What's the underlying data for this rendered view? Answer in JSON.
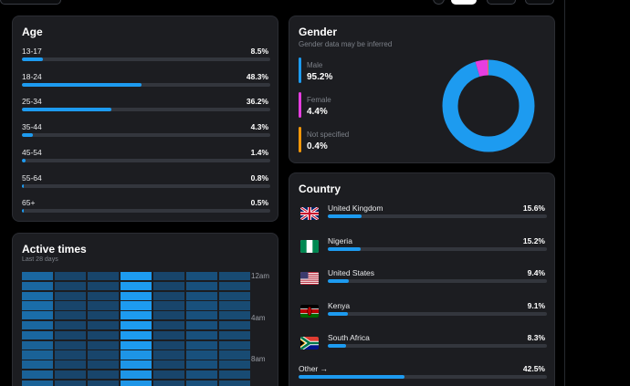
{
  "colors": {
    "accent": "#1d9bf0",
    "male": "#1d9bf0",
    "female": "#e63ee0",
    "not_specified": "#f5970a"
  },
  "age": {
    "title": "Age",
    "rows": [
      {
        "label": "13-17",
        "value": "8.5%",
        "pct": 8.5
      },
      {
        "label": "18-24",
        "value": "48.3%",
        "pct": 48.3
      },
      {
        "label": "25-34",
        "value": "36.2%",
        "pct": 36.2
      },
      {
        "label": "35-44",
        "value": "4.3%",
        "pct": 4.3
      },
      {
        "label": "45-54",
        "value": "1.4%",
        "pct": 1.4
      },
      {
        "label": "55-64",
        "value": "0.8%",
        "pct": 0.8
      },
      {
        "label": "65+",
        "value": "0.5%",
        "pct": 0.5
      }
    ]
  },
  "gender": {
    "title": "Gender",
    "subtitle": "Gender data may be inferred",
    "items": [
      {
        "label": "Male",
        "value": "95.2%",
        "pct": 95.2,
        "color": "#1d9bf0"
      },
      {
        "label": "Female",
        "value": "4.4%",
        "pct": 4.4,
        "color": "#e63ee0"
      },
      {
        "label": "Not specified",
        "value": "0.4%",
        "pct": 0.4,
        "color": "#f5970a"
      }
    ]
  },
  "country": {
    "title": "Country",
    "rows": [
      {
        "label": "United Kingdom",
        "value": "15.6%",
        "pct": 15.6,
        "flag": "uk-flag-icon"
      },
      {
        "label": "Nigeria",
        "value": "15.2%",
        "pct": 15.2,
        "flag": "nigeria-flag-icon"
      },
      {
        "label": "United States",
        "value": "9.4%",
        "pct": 9.4,
        "flag": "us-flag-icon"
      },
      {
        "label": "Kenya",
        "value": "9.1%",
        "pct": 9.1,
        "flag": "kenya-flag-icon"
      },
      {
        "label": "South Africa",
        "value": "8.3%",
        "pct": 8.3,
        "flag": "south-africa-flag-icon"
      }
    ],
    "other": {
      "label": "Other →",
      "value": "42.5%",
      "pct": 42.5
    }
  },
  "active_times": {
    "title": "Active times",
    "subtitle": "Last 28 days",
    "hour_labels": [
      "12am",
      "4am",
      "8am"
    ],
    "intensity": [
      [
        0.55,
        0.25,
        0.25,
        1.0,
        0.25,
        0.35,
        0.3
      ],
      [
        0.55,
        0.25,
        0.25,
        1.0,
        0.25,
        0.35,
        0.3
      ],
      [
        0.6,
        0.25,
        0.25,
        1.0,
        0.25,
        0.35,
        0.3
      ],
      [
        0.6,
        0.25,
        0.25,
        1.0,
        0.25,
        0.35,
        0.3
      ],
      [
        0.6,
        0.25,
        0.25,
        1.0,
        0.25,
        0.35,
        0.3
      ],
      [
        0.55,
        0.25,
        0.25,
        1.0,
        0.25,
        0.35,
        0.3
      ],
      [
        0.55,
        0.25,
        0.25,
        1.0,
        0.25,
        0.35,
        0.3
      ],
      [
        0.5,
        0.25,
        0.25,
        1.0,
        0.25,
        0.35,
        0.3
      ],
      [
        0.5,
        0.25,
        0.25,
        0.95,
        0.25,
        0.35,
        0.3
      ],
      [
        0.5,
        0.25,
        0.25,
        0.95,
        0.25,
        0.35,
        0.3
      ],
      [
        0.5,
        0.25,
        0.25,
        0.95,
        0.25,
        0.35,
        0.3
      ],
      [
        0.5,
        0.25,
        0.25,
        0.95,
        0.25,
        0.35,
        0.3
      ]
    ]
  }
}
